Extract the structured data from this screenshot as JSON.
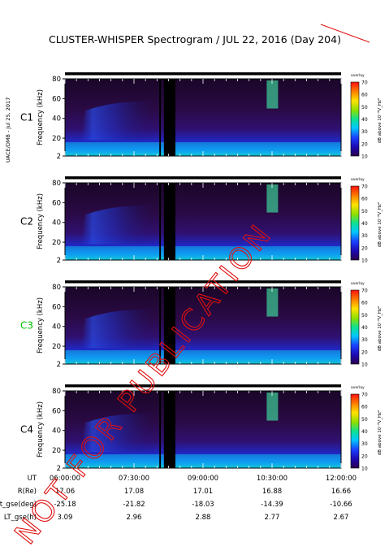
{
  "chart_data": {
    "type": "heatmap",
    "title": "CLUSTER-WHISPER Spectrogram / JUL 22, 2016 (Day 204)",
    "side_text": "UACE/DMB - Jul 25, 2017",
    "watermark": "NOT FOR PUBLICATION",
    "ylabel": "Frequency (kHz)",
    "ylim": [
      2,
      80
    ],
    "y_ticks": [
      "2",
      "20",
      "40",
      "60",
      "80"
    ],
    "colorbar": {
      "top_label": "overlay",
      "label": "dB above 10⁻⁸V_Hz²",
      "ticks": [
        "10",
        "20",
        "30",
        "40",
        "50",
        "60",
        "70"
      ],
      "range": [
        10,
        70
      ],
      "colors": [
        "#2a004a",
        "#1c08b0",
        "#1a40ff",
        "#00c8ff",
        "#10e090",
        "#8ee000",
        "#ffe000",
        "#ff8000",
        "#ff1010"
      ]
    },
    "panels": [
      {
        "name": "C1",
        "label_color": "#000000"
      },
      {
        "name": "C2",
        "label_color": "#000000"
      },
      {
        "name": "C3",
        "label_color": "#00c000"
      },
      {
        "name": "C4",
        "label_color": "#000000"
      }
    ],
    "x_axis": {
      "labels": [
        "06:00:00",
        "07:30:00",
        "09:00:00",
        "10:30:00",
        "12:00:00"
      ],
      "rows": [
        {
          "name": "UT",
          "values": [
            "06:00:00",
            "07:30:00",
            "09:00:00",
            "10:30:00",
            "12:00:00"
          ]
        },
        {
          "name": "R(Re)",
          "values": [
            "17.06",
            "17.08",
            "17.01",
            "16.88",
            "16.66"
          ]
        },
        {
          "name": "Lat_gse(deg)",
          "values": [
            "-25.18",
            "-21.82",
            "-18.03",
            "-14.39",
            "-10.66"
          ]
        },
        {
          "name": "LT_gse(h)",
          "values": [
            "3.09",
            "2.96",
            "2.88",
            "2.77",
            "2.67"
          ]
        }
      ]
    },
    "data_gaps_ut": [
      [
        "08:03",
        "08:05"
      ],
      [
        "08:09",
        "08:24"
      ]
    ]
  }
}
